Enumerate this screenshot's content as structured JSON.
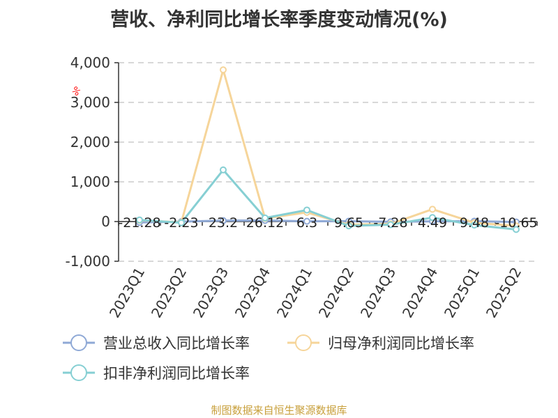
{
  "title": "营收、净利同比增长率季度变动情况(%)",
  "source": "制图数据来自恒生聚源数据库",
  "colors": {
    "revenue": "#8fa9d6",
    "net_profit": "#f6d59a",
    "deducted_profit": "#86cfd3",
    "grid": "#cccccc",
    "axis": "#333333"
  },
  "chart_data": {
    "type": "line",
    "title": "营收、净利同比增长率季度变动情况(%)",
    "ylabel": "%",
    "ylim": [
      -1000,
      4000
    ],
    "yticks": [
      -1000,
      0,
      1000,
      2000,
      3000,
      4000
    ],
    "ytick_labels": [
      "-1,000",
      "0",
      "1,000",
      "2,000",
      "3,000",
      "4,000"
    ],
    "grid": true,
    "legend_position": "bottom",
    "categories": [
      "2023Q1",
      "2023Q2",
      "2023Q3",
      "2023Q4",
      "2024Q1",
      "2024Q2",
      "2024Q3",
      "2024Q4",
      "2025Q1",
      "2025Q2"
    ],
    "series": [
      {
        "name": "营业总收入同比增长率",
        "color_key": "revenue",
        "values": [
          -21.28,
          -2.23,
          23.2,
          26.12,
          6.3,
          9.65,
          -7.28,
          4.49,
          9.48,
          -10.65
        ],
        "labels": [
          "-21.28",
          "-2.23",
          "23.2",
          "26.12",
          "6.3",
          "9.65",
          "-7.28",
          "4.49",
          "9.48",
          "-10.65"
        ]
      },
      {
        "name": "归母净利润同比增长率",
        "color_key": "net_profit",
        "values": [
          30,
          -20,
          3820,
          80,
          230,
          -80,
          -60,
          310,
          -30,
          -110
        ]
      },
      {
        "name": "扣非净利润同比增长率",
        "color_key": "deducted_profit",
        "values": [
          40,
          -30,
          1300,
          90,
          290,
          -110,
          -80,
          100,
          -90,
          -200
        ]
      }
    ]
  }
}
